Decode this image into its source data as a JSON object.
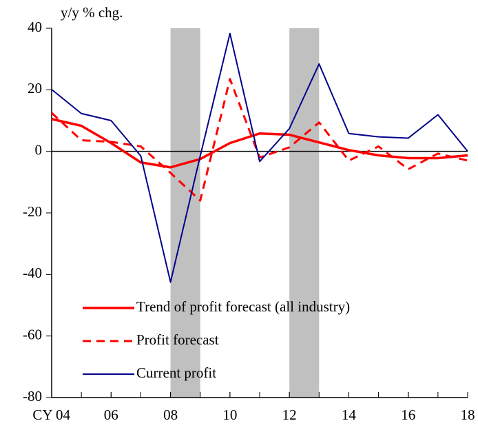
{
  "chart_data": {
    "type": "line",
    "y_label": "y/y % chg.",
    "x": [
      2004,
      2005,
      2006,
      2007,
      2008,
      2009,
      2010,
      2011,
      2012,
      2013,
      2014,
      2015,
      2016,
      2017,
      2018
    ],
    "xlim": [
      2004,
      2018
    ],
    "xticks": [
      {
        "value": 2004,
        "label": "CY 04"
      },
      {
        "value": 2006,
        "label": "06"
      },
      {
        "value": 2008,
        "label": "08"
      },
      {
        "value": 2010,
        "label": "10"
      },
      {
        "value": 2012,
        "label": "12"
      },
      {
        "value": 2014,
        "label": "14"
      },
      {
        "value": 2016,
        "label": "16"
      },
      {
        "value": 2018,
        "label": "18"
      }
    ],
    "ylim": [
      -80,
      40
    ],
    "yticks": [
      -80,
      -60,
      -40,
      -20,
      0,
      20,
      40
    ],
    "shaded_ranges": [
      [
        2008,
        2009
      ],
      [
        2012,
        2013
      ]
    ],
    "shade_color": "#c0c0c0",
    "series": [
      {
        "name": "Trend of profit forecast (all industry)",
        "color": "#ff0000",
        "style": "solid-thick",
        "values": [
          10.5,
          8.3,
          2.7,
          -3.6,
          -5.2,
          -2.5,
          2.7,
          5.8,
          5.4,
          2.9,
          0.4,
          -1.3,
          -2.2,
          -2.2,
          -1.3
        ]
      },
      {
        "name": "Profit forecast",
        "color": "#ff0000",
        "style": "dashed",
        "values": [
          12.5,
          3.6,
          3.1,
          1.6,
          -7,
          -16,
          23.5,
          -2,
          1.3,
          9.4,
          -3,
          1.6,
          -5.8,
          -0.7,
          -3
        ]
      },
      {
        "name": "Current profit",
        "color": "#00008b",
        "style": "solid",
        "values": [
          20.1,
          12.3,
          10,
          -1.5,
          -42.5,
          -1.5,
          38.3,
          -3.3,
          7.4,
          28.4,
          5.8,
          4.7,
          4.3,
          11.9,
          0
        ]
      }
    ]
  }
}
